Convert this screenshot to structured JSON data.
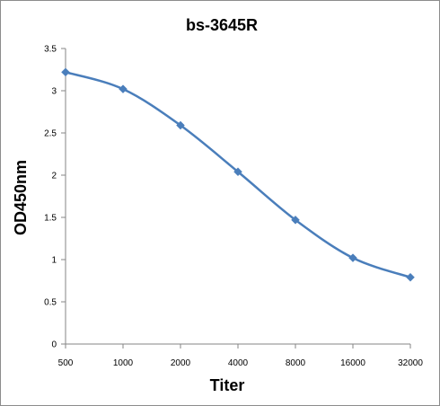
{
  "chart_data": {
    "type": "line",
    "title": "bs-3645R",
    "xlabel": "Titer",
    "ylabel": "OD450nm",
    "categories": [
      "500",
      "1000",
      "2000",
      "4000",
      "8000",
      "16000",
      "32000"
    ],
    "series": [
      {
        "values": [
          3.22,
          3.02,
          2.59,
          2.04,
          1.47,
          1.02,
          0.79
        ]
      }
    ],
    "ylim": [
      0,
      3.5
    ],
    "yticks": [
      "0",
      "0.5",
      "1",
      "1.5",
      "2",
      "2.5",
      "3",
      "3.5"
    ],
    "grid": false,
    "legend": "none",
    "smooth": true,
    "marker": "diamond",
    "line_color": "#4a7ebb"
  }
}
